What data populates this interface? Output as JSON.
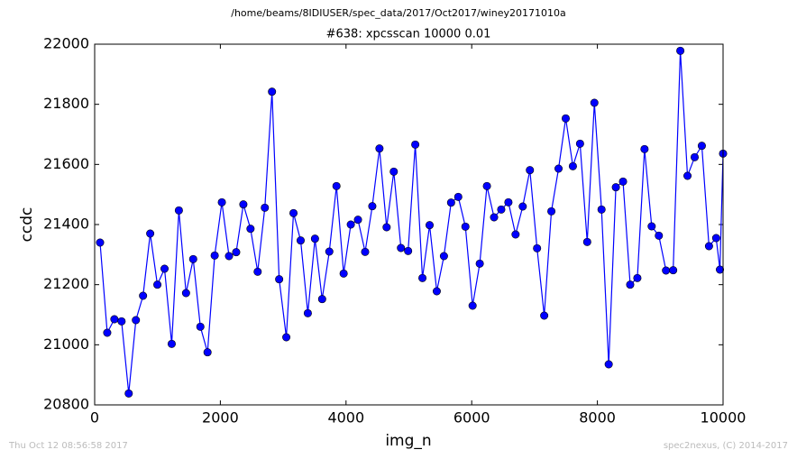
{
  "header": "/home/beams/8IDIUSER/spec_data/2017/Oct2017/winey20171010a",
  "chart_data": {
    "type": "line",
    "title": "#638: xpcsscan 10000 0.01",
    "xlabel": "img_n",
    "ylabel": "ccdc",
    "x": [
      86,
      200,
      314,
      428,
      542,
      656,
      770,
      884,
      998,
      1112,
      1226,
      1340,
      1454,
      1568,
      1682,
      1796,
      1910,
      2024,
      2138,
      2252,
      2366,
      2480,
      2594,
      2708,
      2822,
      2936,
      3050,
      3164,
      3278,
      3392,
      3506,
      3620,
      3734,
      3848,
      3962,
      4076,
      4190,
      4304,
      4418,
      4532,
      4646,
      4760,
      4874,
      4988,
      5102,
      5216,
      5330,
      5444,
      5558,
      5672,
      5786,
      5900,
      6014,
      6128,
      6242,
      6356,
      6470,
      6584,
      6698,
      6812,
      6926,
      7040,
      7154,
      7268,
      7382,
      7496,
      7610,
      7724,
      7838,
      7952,
      8066,
      8180,
      8294,
      8408,
      8522,
      8636,
      8750,
      8864,
      8978,
      9092,
      9206,
      9320,
      9434,
      9548,
      9662,
      9776,
      9890,
      9950,
      10000
    ],
    "series": [
      {
        "name": "ccdc",
        "color": "#0000ff",
        "values": [
          21340,
          21040,
          21085,
          21078,
          20838,
          21082,
          21163,
          21370,
          21200,
          21253,
          21003,
          21447,
          21172,
          21285,
          21060,
          20975,
          21297,
          21474,
          21295,
          21308,
          21467,
          21386,
          21243,
          21456,
          21842,
          21218,
          21025,
          21438,
          21347,
          21105,
          21353,
          21152,
          21310,
          21528,
          21237,
          21400,
          21416,
          21309,
          21461,
          21653,
          21391,
          21576,
          21322,
          21312,
          21666,
          21222,
          21398,
          21178,
          21295,
          21473,
          21492,
          21393,
          21130,
          21270,
          21528,
          21424,
          21450,
          21474,
          21367,
          21460,
          21581,
          21321,
          21097,
          21444,
          21586,
          21753,
          21594,
          21669,
          21342,
          21805,
          21450,
          20935,
          21524,
          21543,
          21200,
          21222,
          21651,
          21394,
          21363,
          21247,
          21248,
          21978,
          21562,
          21624,
          21662,
          21328,
          21355,
          21250,
          21636
        ]
      }
    ],
    "xlim": [
      0,
      10000
    ],
    "xticks": [
      0,
      2000,
      4000,
      6000,
      8000,
      10000
    ],
    "ylim": [
      20800,
      22000
    ],
    "yticks": [
      20800,
      21000,
      21200,
      21400,
      21600,
      21800,
      22000
    ]
  },
  "footer": {
    "left": "Thu Oct 12 08:56:58 2017",
    "right": "spec2nexus, (C) 2014-2017"
  }
}
